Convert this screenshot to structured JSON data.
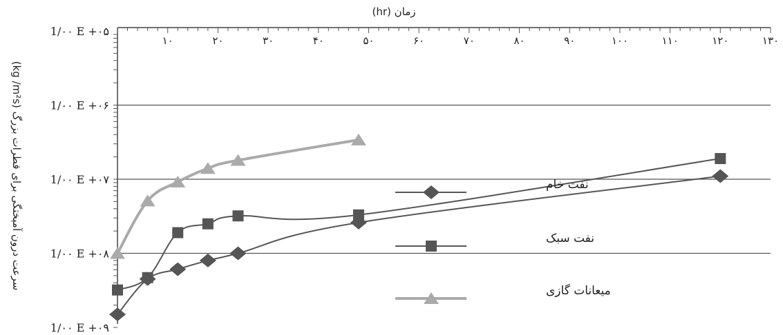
{
  "chart_data": {
    "type": "line",
    "xlabel": "زمان (hr)",
    "ylabel": "سرعت درون آمیختگی برای قطرات بزرگ (kg /m²s)",
    "x_ticks": [
      "۱۰",
      "۲۰",
      "۳۰",
      "۴۰",
      "۵۰",
      "۶۰",
      "۷۰",
      "۸۰",
      "۹۰",
      "۱۰۰",
      "۱۱۰",
      "۱۲۰",
      "۱۳۰"
    ],
    "y_ticks": [
      "1/۰۰ E +۰۵",
      "1/۰۰ E +۰۶",
      "1/۰۰ E +۰۷",
      "1/۰۰ E +۰۸",
      "1/۰۰ E +۰۹"
    ],
    "xlim": [
      0,
      130
    ],
    "y_scale": "log",
    "y_exponent_range": [
      -5,
      -9
    ],
    "grid": "horizontal",
    "x_axis_position": "top",
    "legend_position": "center-right",
    "series": [
      {
        "name": "نفت خام",
        "marker": "diamond",
        "color": "#555555",
        "x": [
          0,
          6,
          12,
          18,
          24,
          48,
          120
        ],
        "y": [
          1.5e-09,
          4.5e-09,
          6.1e-09,
          8e-09,
          1e-08,
          2.6e-08,
          1.1e-07
        ]
      },
      {
        "name": "نفت سبک",
        "marker": "square",
        "color": "#555555",
        "x": [
          0,
          6,
          12,
          18,
          24,
          48,
          120
        ],
        "y": [
          3.2e-09,
          4.7e-09,
          1.9e-08,
          2.5e-08,
          3.2e-08,
          3.3e-08,
          1.9e-07
        ]
      },
      {
        "name": "میعانات گازی",
        "marker": "triangle",
        "color": "#aaaaaa",
        "x": [
          0,
          6,
          12,
          18,
          24,
          48
        ],
        "y": [
          1e-08,
          5.1e-08,
          9.2e-08,
          1.4e-07,
          1.8e-07,
          3.4e-07
        ]
      }
    ]
  }
}
